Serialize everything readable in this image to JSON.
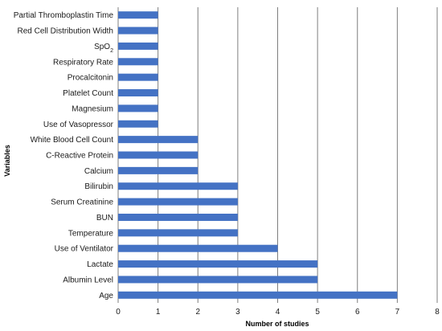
{
  "chart_data": {
    "type": "bar",
    "orientation": "horizontal",
    "xlabel": "Number of studies",
    "ylabel": "Variables",
    "xlim": [
      0,
      8
    ],
    "x_ticks": [
      "0",
      "1",
      "2",
      "3",
      "4",
      "5",
      "6",
      "7",
      "8"
    ],
    "grid": true,
    "bar_color": "#4472c4",
    "categories": [
      "Partial Thromboplastin Time",
      "Red Cell Distribution Width",
      "SpO2",
      "Respiratory Rate",
      "Procalcitonin",
      "Platelet Count",
      "Magnesium",
      "Use of Vasopressor",
      "White Blood Cell Count",
      "C-Reactive Protein",
      "Calcium",
      "Bilirubin",
      "Serum Creatinine",
      "BUN",
      "Temperature",
      "Use of Ventilator",
      "Lactate",
      "Albumin Level",
      "Age"
    ],
    "values": [
      1,
      1,
      1,
      1,
      1,
      1,
      1,
      1,
      2,
      2,
      2,
      3,
      3,
      3,
      3,
      4,
      5,
      5,
      7
    ]
  }
}
